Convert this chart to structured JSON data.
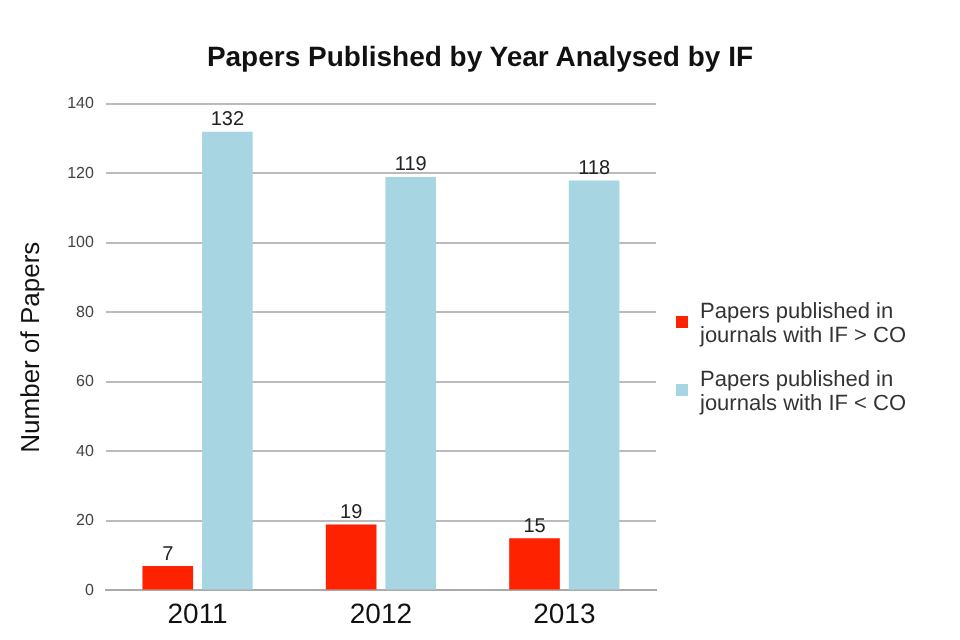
{
  "chart_data": {
    "type": "bar",
    "title": "Papers Published by Year Analysed by IF",
    "ylabel": "Number of Papers",
    "categories": [
      "2011",
      "2012",
      "2013"
    ],
    "series": [
      {
        "name": "Papers published in journals with IF > CO",
        "color": "#ff2200",
        "values": [
          7,
          19,
          15
        ]
      },
      {
        "name": "Papers published in journals with IF < CO",
        "color": "#a8d5e2",
        "values": [
          132,
          119,
          118
        ]
      }
    ],
    "ylim": [
      0,
      140
    ],
    "yticks": [
      0,
      20,
      40,
      60,
      80,
      100,
      120,
      140
    ],
    "grid": "y",
    "legend": "right",
    "data_labels": true
  }
}
